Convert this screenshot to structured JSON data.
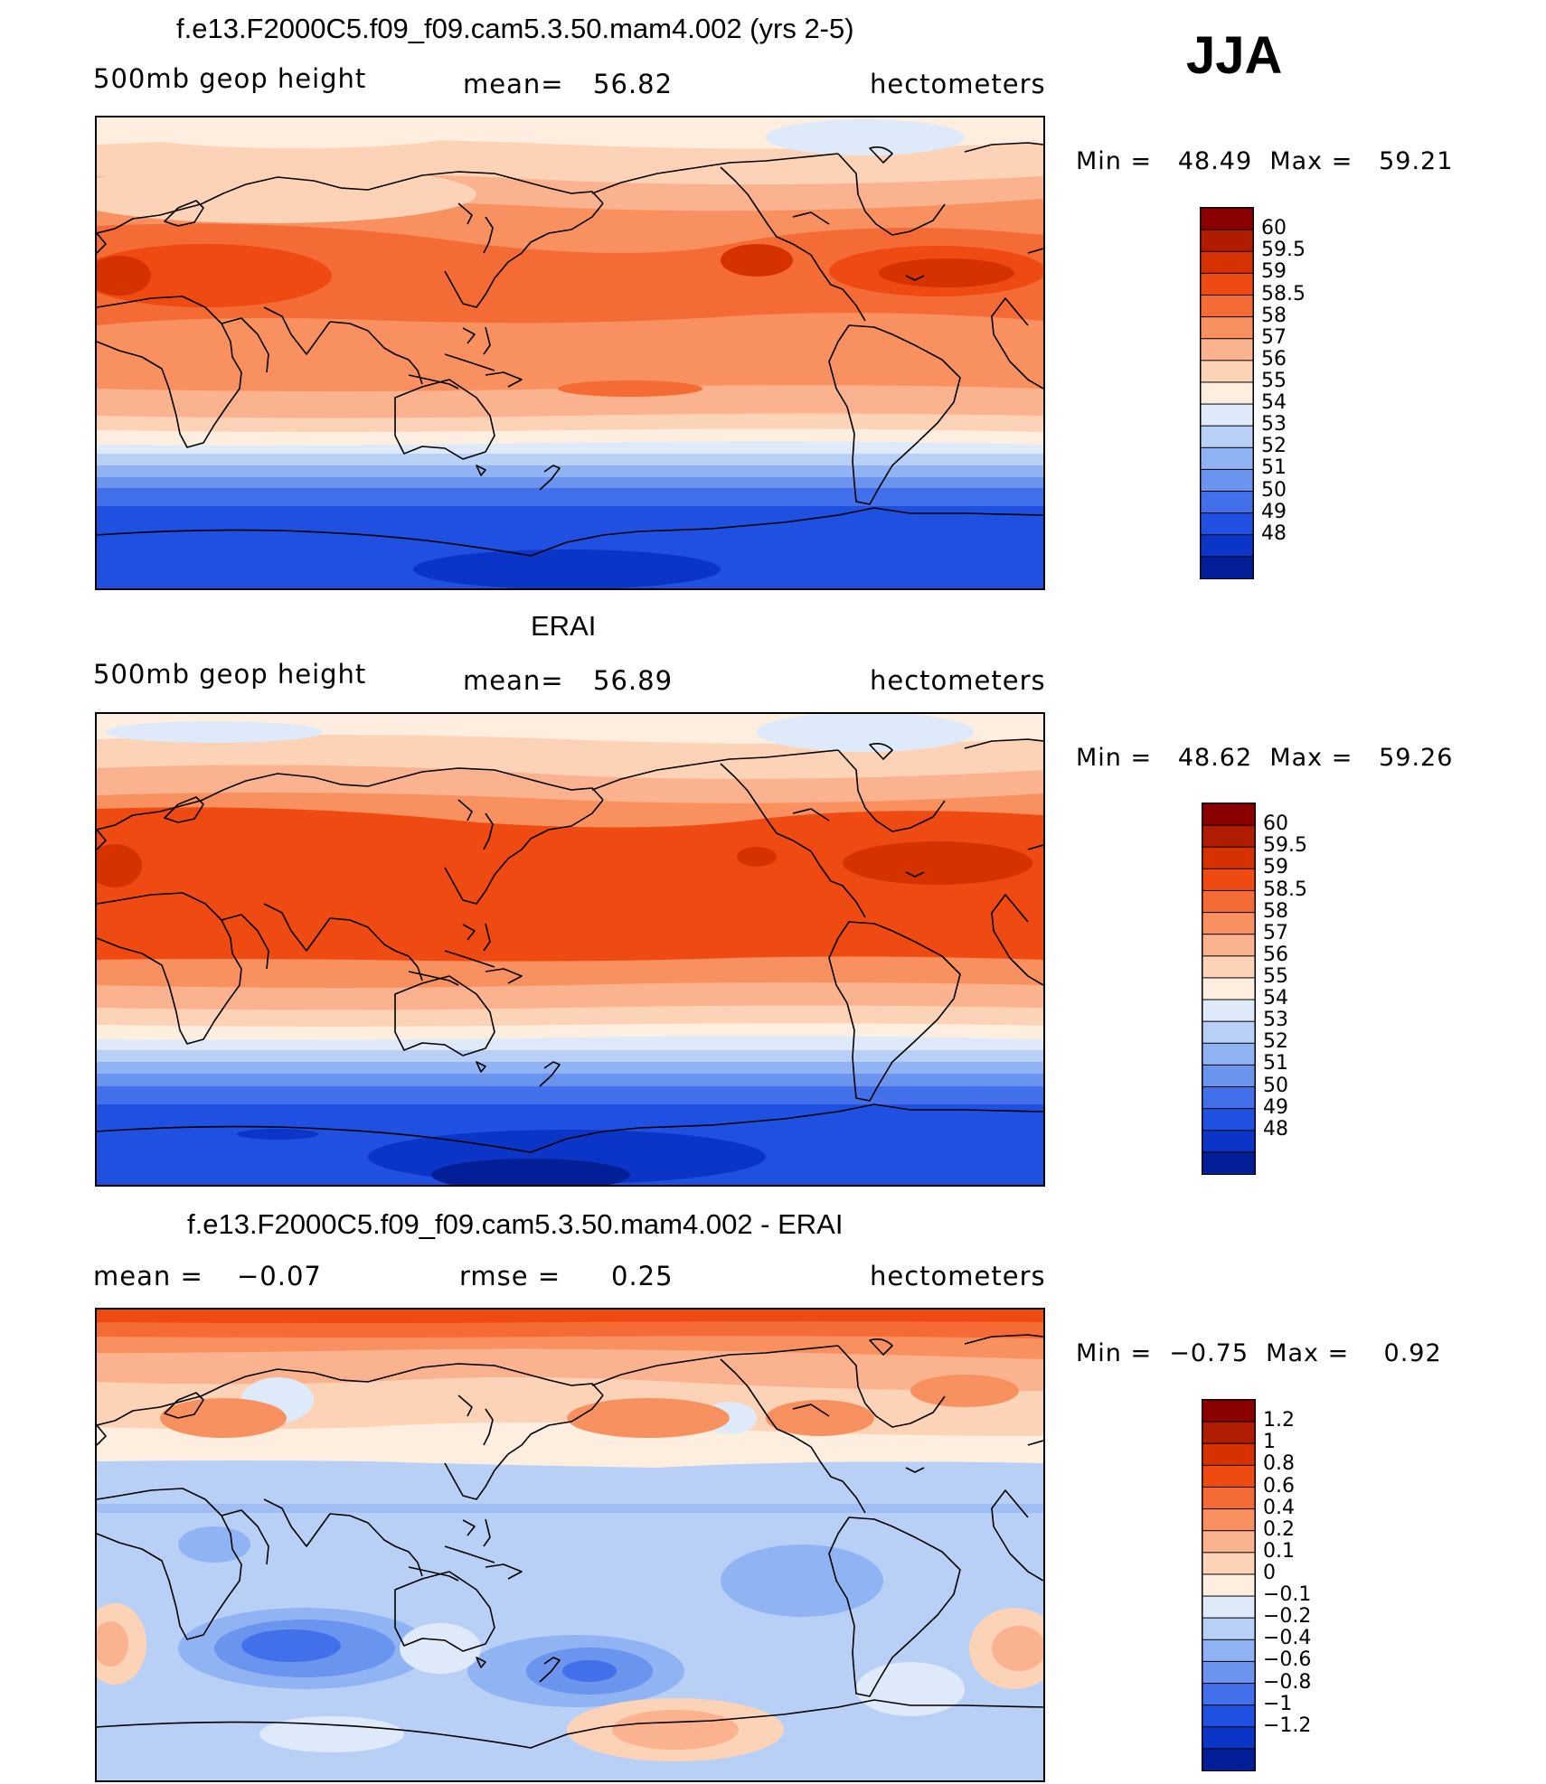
{
  "season": "JJA",
  "panels": [
    {
      "title": "f.e13.F2000C5.f09_f09.cam5.3.50.mam4.002 (yrs 2-5)",
      "left_label": "500mb geop height",
      "center_label": "mean=",
      "center_value": "56.82",
      "right_label": "hectometers",
      "minmax": "Min =   48.49  Max =   59.21",
      "map": "model-field"
    },
    {
      "title": "ERAI",
      "left_label": "500mb geop height",
      "center_label": "mean=",
      "center_value": "56.89",
      "right_label": "hectometers",
      "minmax": "Min =   48.62  Max =   59.26",
      "map": "observed-field"
    },
    {
      "title": "f.e13.F2000C5.f09_f09.cam5.3.50.mam4.002 - ERAI",
      "left_label": "mean =",
      "left_value": "−0.07",
      "center_label": "rmse =",
      "center_value": "0.25",
      "right_label": "hectometers",
      "minmax": "Min =  −0.75  Max =    0.92",
      "map": "difference-field"
    }
  ],
  "colorbars": {
    "field": {
      "ticks": [
        "60",
        "59.5",
        "59",
        "58.5",
        "58",
        "57",
        "56",
        "55",
        "54",
        "53",
        "52",
        "51",
        "50",
        "49",
        "48"
      ],
      "colors": [
        "#8b0000",
        "#b01c00",
        "#d53200",
        "#ef4a12",
        "#f56b35",
        "#f8915f",
        "#fbb28e",
        "#fdd3b8",
        "#fdeee0",
        "#deeaf9",
        "#b9d0f6",
        "#90b3f4",
        "#6b94ef",
        "#4270ea",
        "#1f50e2",
        "#0b35c6",
        "#031f97"
      ]
    },
    "diff": {
      "ticks": [
        "1.2",
        "1",
        "0.8",
        "0.6",
        "0.4",
        "0.2",
        "0.1",
        "0",
        "−0.1",
        "−0.2",
        "−0.4",
        "−0.6",
        "−0.8",
        "−1",
        "−1.2"
      ],
      "colors": [
        "#8b0000",
        "#b01c00",
        "#d53200",
        "#ef4a12",
        "#f56b35",
        "#f8915f",
        "#fbb28e",
        "#fdd3b8",
        "#fdeee0",
        "#deeaf9",
        "#b9d0f6",
        "#90b3f4",
        "#6b94ef",
        "#4270ea",
        "#1f50e2",
        "#0b35c6",
        "#031f97"
      ]
    }
  }
}
